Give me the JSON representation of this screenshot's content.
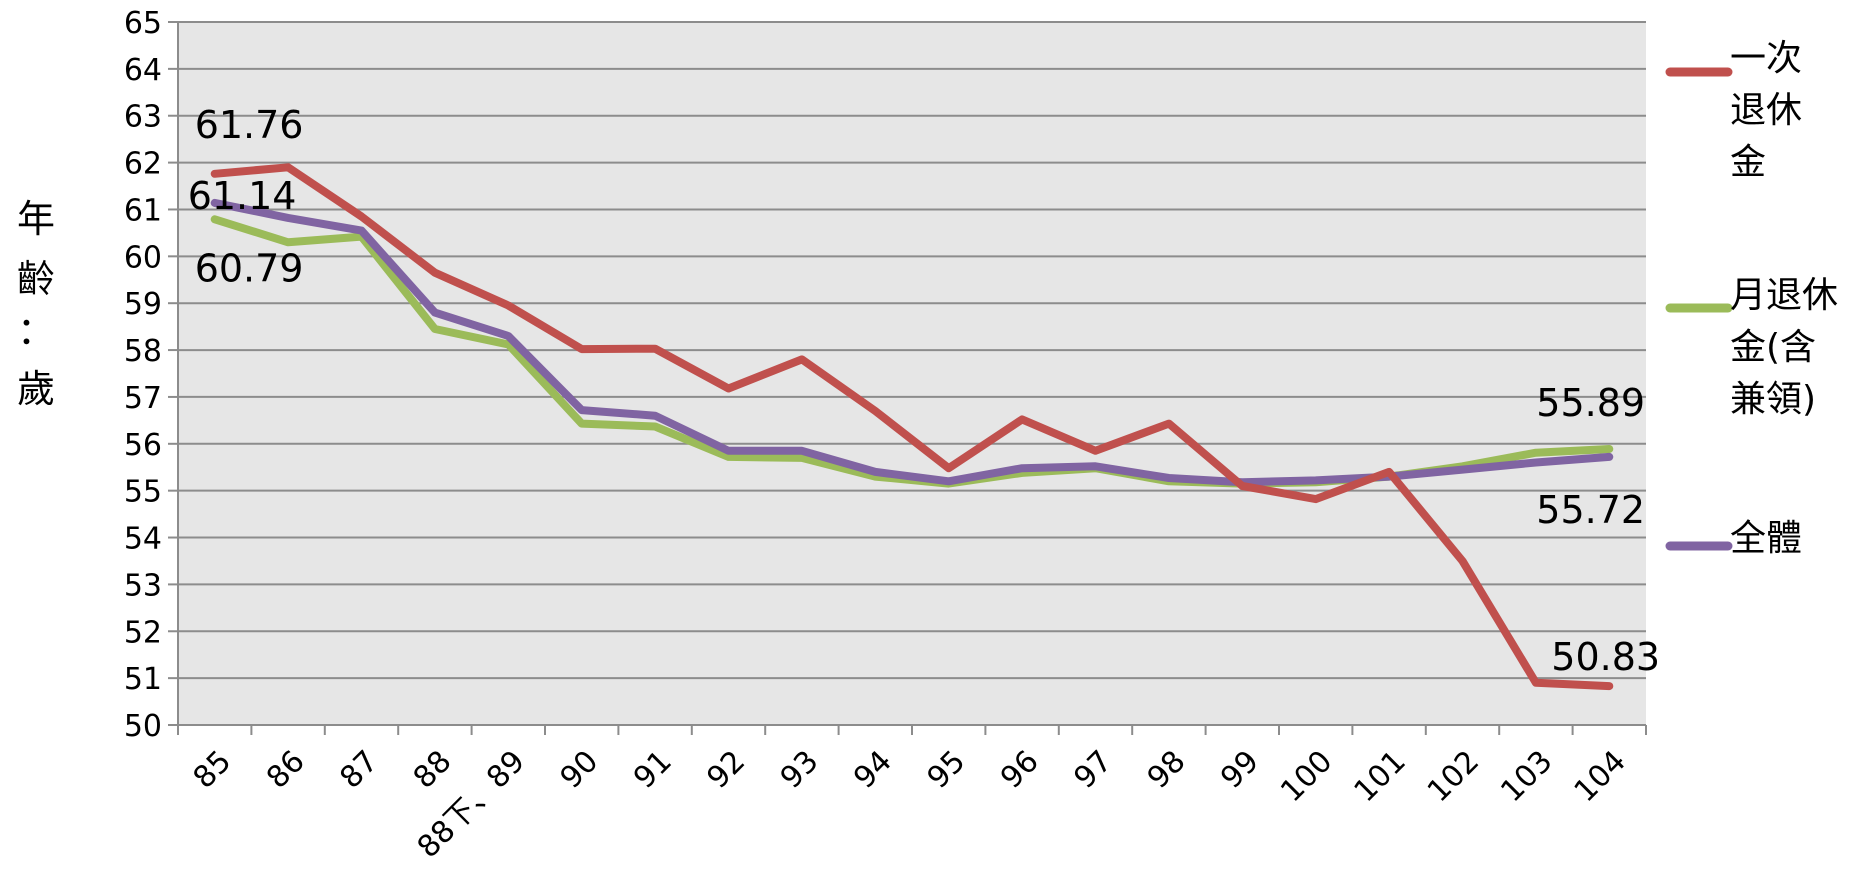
{
  "chart_data": {
    "type": "line",
    "categories": [
      "85",
      "86",
      "87",
      "88",
      "88下、89",
      "90",
      "91",
      "92",
      "93",
      "94",
      "95",
      "96",
      "97",
      "98",
      "99",
      "100",
      "101",
      "102",
      "103",
      "104"
    ],
    "ylabel": "年齡：歲",
    "ylim": [
      50,
      65
    ],
    "yticks": [
      50,
      51,
      52,
      53,
      54,
      55,
      56,
      57,
      58,
      59,
      60,
      61,
      62,
      63,
      64,
      65
    ],
    "grid": true,
    "legend_position": "right",
    "series": [
      {
        "name": "一次退休金",
        "legend_lines": [
          "一次",
          "退休",
          "金"
        ],
        "color": "#c0504d",
        "values": [
          61.76,
          61.9,
          60.85,
          59.65,
          58.95,
          58.02,
          58.03,
          57.18,
          57.8,
          56.7,
          55.48,
          56.52,
          55.85,
          56.43,
          55.1,
          54.82,
          55.4,
          53.5,
          50.9,
          50.83
        ]
      },
      {
        "name": "月退休金(含兼領)",
        "legend_lines": [
          "月退休",
          "金(含",
          "兼領)"
        ],
        "color": "#9bbb59",
        "values": [
          60.79,
          60.3,
          60.42,
          58.45,
          58.12,
          56.43,
          56.37,
          55.72,
          55.7,
          55.3,
          55.15,
          55.38,
          55.48,
          55.2,
          55.15,
          55.18,
          55.3,
          55.52,
          55.81,
          55.89
        ]
      },
      {
        "name": "全體",
        "legend_lines": [
          "全體"
        ],
        "color": "#8064a2",
        "values": [
          61.14,
          60.82,
          60.55,
          58.8,
          58.3,
          56.72,
          56.6,
          55.85,
          55.85,
          55.4,
          55.2,
          55.48,
          55.52,
          55.27,
          55.18,
          55.22,
          55.3,
          55.45,
          55.6,
          55.72
        ]
      }
    ],
    "data_labels": [
      {
        "series": 0,
        "index": 0,
        "text": "61.76"
      },
      {
        "series": 2,
        "index": 0,
        "text": "61.14"
      },
      {
        "series": 1,
        "index": 0,
        "text": "60.79"
      },
      {
        "series": 1,
        "index": 19,
        "text": "55.89"
      },
      {
        "series": 2,
        "index": 19,
        "text": "55.72"
      },
      {
        "series": 0,
        "index": 19,
        "text": "50.83"
      }
    ]
  }
}
